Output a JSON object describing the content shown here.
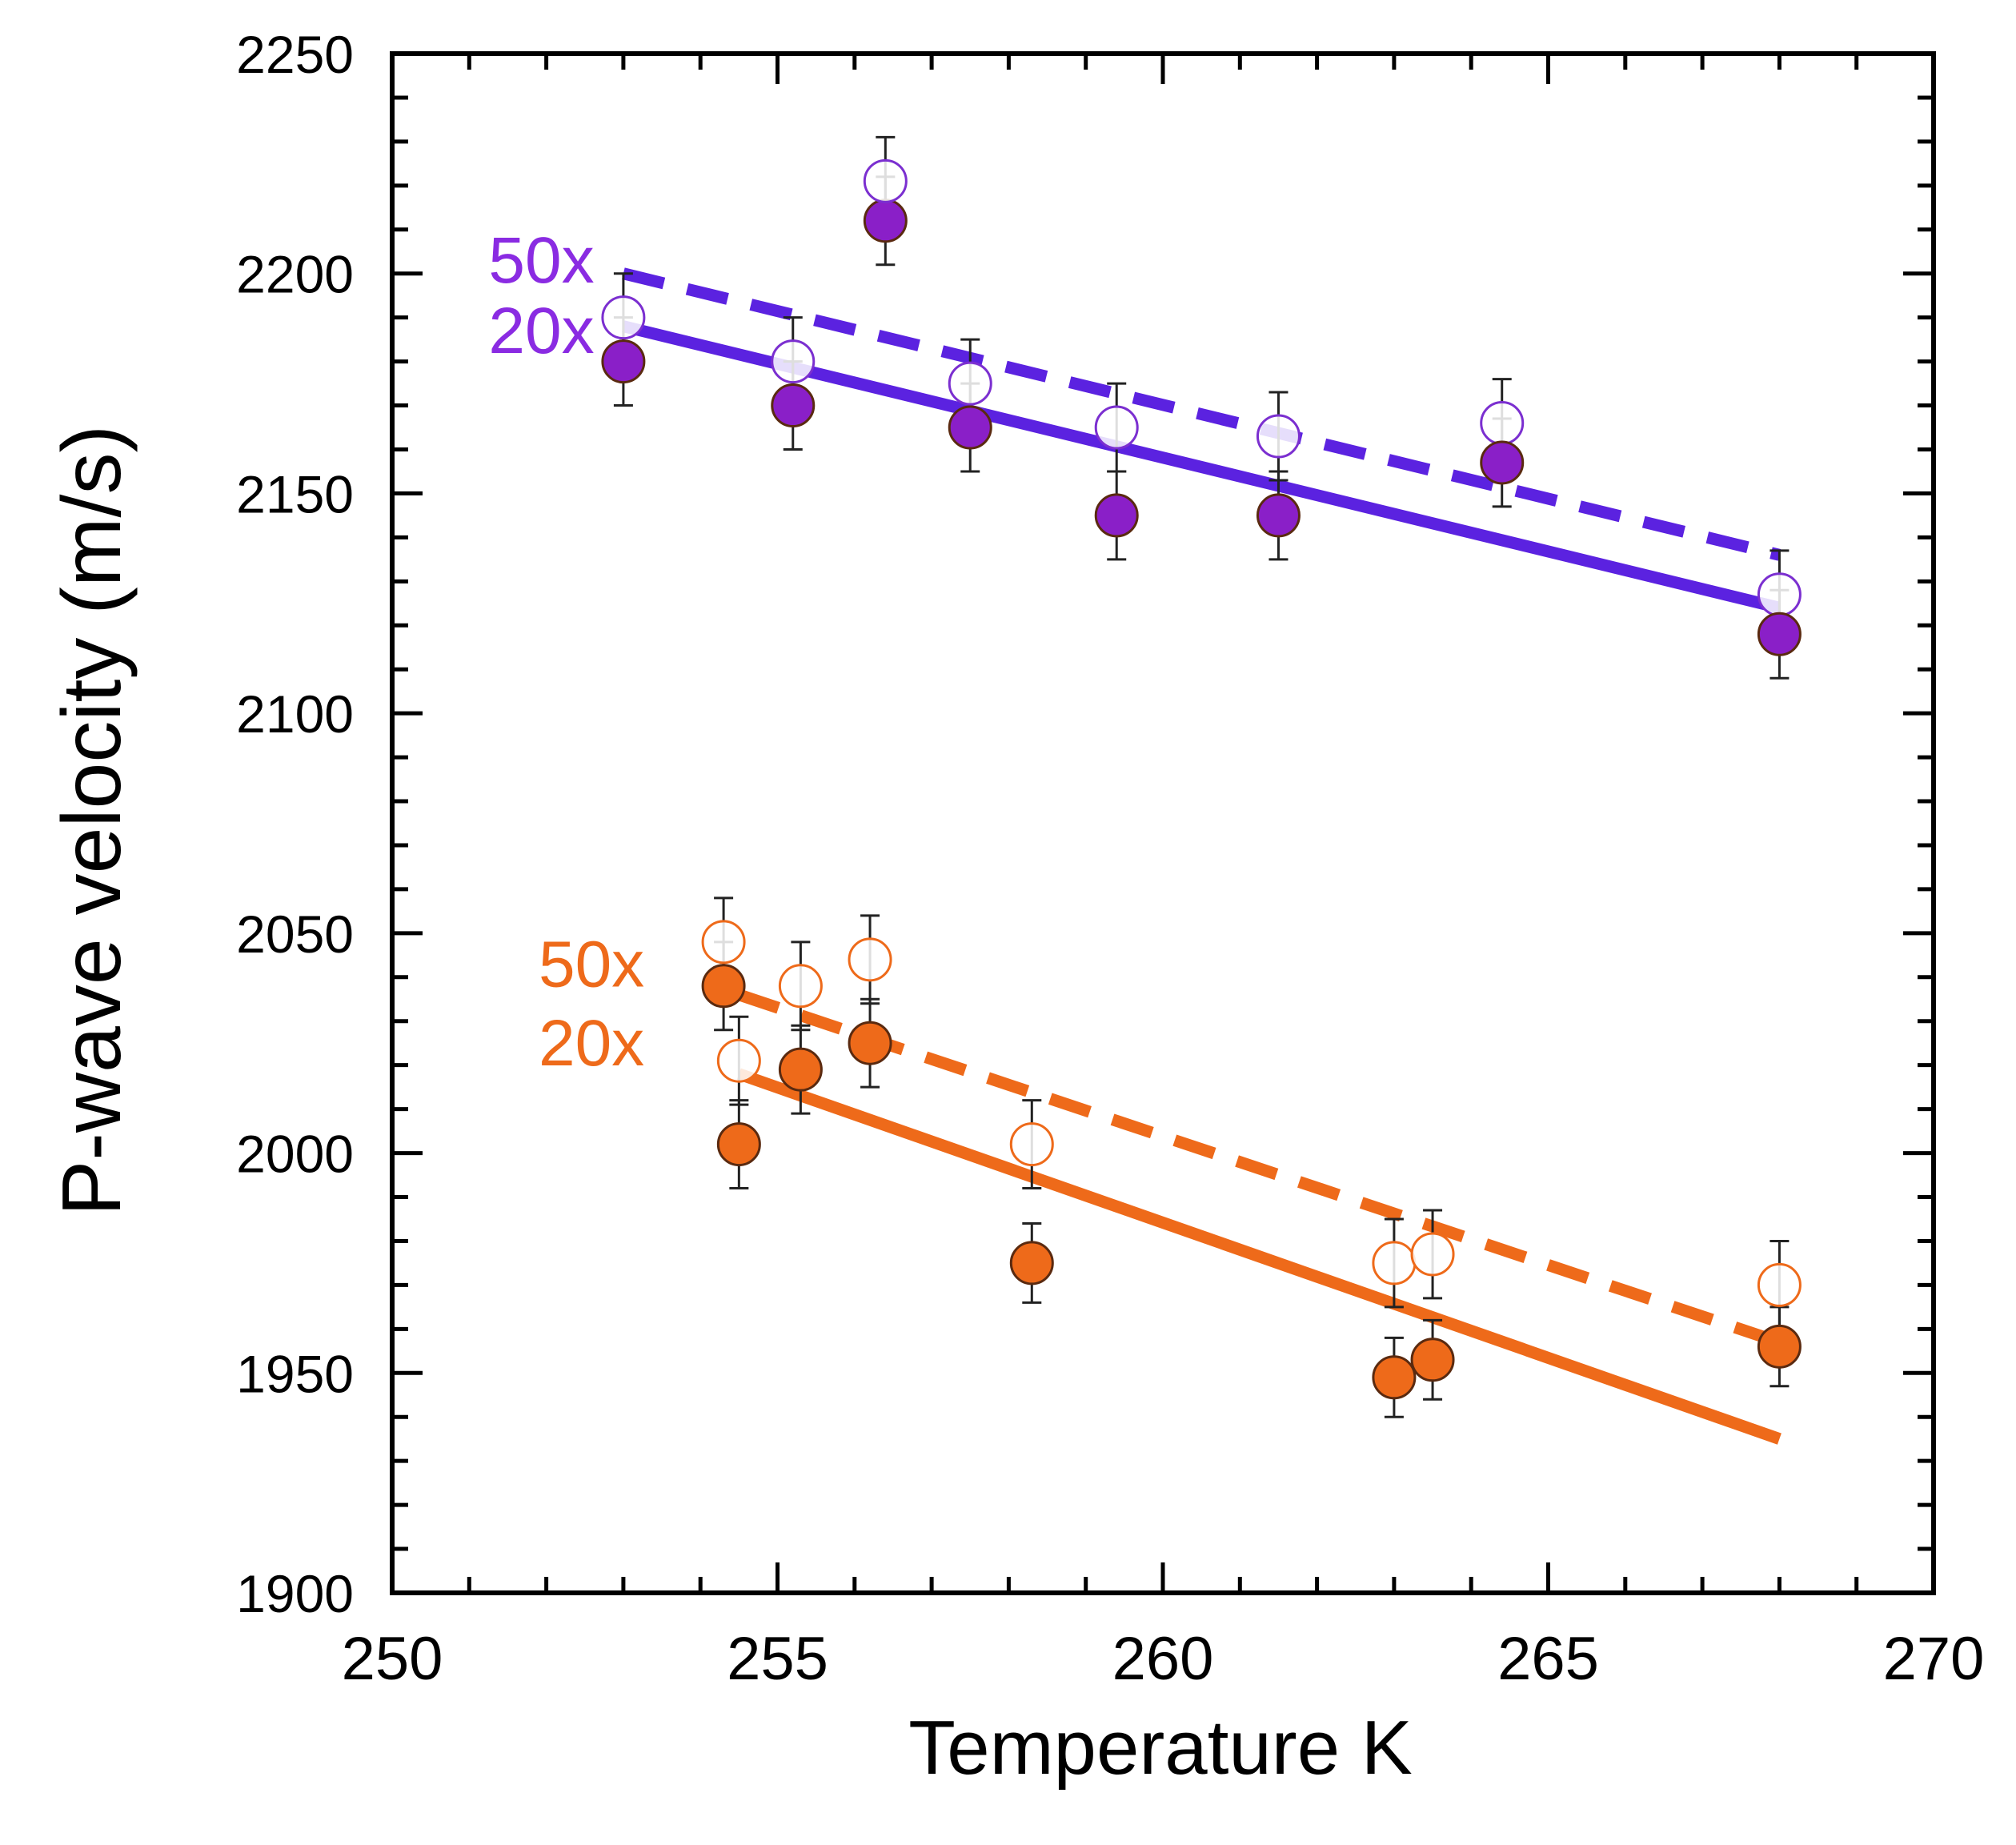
{
  "chart_data": {
    "type": "scatter",
    "title": "",
    "xlabel": "Temperature K",
    "ylabel": "P-wave velocity (m/s)",
    "xlim": [
      250,
      270
    ],
    "ylim": [
      1900,
      2250
    ],
    "xticks": [
      250,
      255,
      260,
      265,
      270
    ],
    "yticks": [
      1900,
      1950,
      2000,
      2050,
      2100,
      2150,
      2200,
      2250
    ],
    "x_minor_step": 1,
    "y_minor_step": 10,
    "grid": false,
    "series": [
      {
        "name": "purple 50x (open)",
        "color": "#7b2fd0",
        "marker": "open-circle",
        "points": [
          {
            "x": 253.0,
            "y": 2190,
            "err": 10
          },
          {
            "x": 255.2,
            "y": 2180,
            "err": 10
          },
          {
            "x": 257.5,
            "y": 2175,
            "err": 10
          },
          {
            "x": 259.4,
            "y": 2165,
            "err": 10
          },
          {
            "x": 261.5,
            "y": 2163,
            "err": 10
          },
          {
            "x": 264.4,
            "y": 2166,
            "err": 10
          },
          {
            "x": 268.0,
            "y": 2127,
            "err": 10
          }
        ]
      },
      {
        "name": "purple 20x (filled)",
        "color": "#8a1fc8",
        "marker": "filled-circle",
        "points": [
          {
            "x": 253.0,
            "y": 2180,
            "err": 10
          },
          {
            "x": 255.2,
            "y": 2170,
            "err": 10
          },
          {
            "x": 256.4,
            "y": 2212,
            "err": 10
          },
          {
            "x": 257.5,
            "y": 2165,
            "err": 10
          },
          {
            "x": 259.4,
            "y": 2145,
            "err": 10
          },
          {
            "x": 261.5,
            "y": 2145,
            "err": 10
          },
          {
            "x": 264.4,
            "y": 2157,
            "err": 10
          },
          {
            "x": 268.0,
            "y": 2118,
            "err": 10
          }
        ]
      },
      {
        "name": "purple 50x (open, extra)",
        "color": "#7b2fd0",
        "marker": "open-circle",
        "points": [
          {
            "x": 256.4,
            "y": 2221,
            "err": 10
          }
        ]
      },
      {
        "name": "orange 50x (open)",
        "color": "#ee6a1a",
        "marker": "open-circle",
        "points": [
          {
            "x": 254.3,
            "y": 2048,
            "err": 10
          },
          {
            "x": 255.3,
            "y": 2038,
            "err": 10
          },
          {
            "x": 256.2,
            "y": 2044,
            "err": 10
          },
          {
            "x": 254.5,
            "y": 2021,
            "err": 10
          },
          {
            "x": 258.3,
            "y": 2002,
            "err": 10
          },
          {
            "x": 263.0,
            "y": 1975,
            "err": 10
          },
          {
            "x": 263.5,
            "y": 1977,
            "err": 10
          },
          {
            "x": 268.0,
            "y": 1970,
            "err": 10
          }
        ]
      },
      {
        "name": "orange 20x (filled)",
        "color": "#ee6a1a",
        "marker": "filled-circle",
        "points": [
          {
            "x": 254.3,
            "y": 2038,
            "err": 10
          },
          {
            "x": 254.5,
            "y": 2002,
            "err": 10
          },
          {
            "x": 255.3,
            "y": 2019,
            "err": 10
          },
          {
            "x": 256.2,
            "y": 2025,
            "err": 10
          },
          {
            "x": 258.3,
            "y": 1975,
            "err": 9
          },
          {
            "x": 263.0,
            "y": 1949,
            "err": 9
          },
          {
            "x": 263.5,
            "y": 1953,
            "err": 9
          },
          {
            "x": 268.0,
            "y": 1956,
            "err": 9
          }
        ]
      }
    ],
    "fit_lines": [
      {
        "name": "purple 50x fit",
        "style": "dashed",
        "color": "#5b22e0",
        "x": [
          253.0,
          268.0
        ],
        "y": [
          2200,
          2136
        ]
      },
      {
        "name": "purple 20x fit",
        "style": "solid",
        "color": "#5b22e0",
        "x": [
          253.0,
          268.0
        ],
        "y": [
          2188,
          2124
        ]
      },
      {
        "name": "orange 50x fit",
        "style": "dashed",
        "color": "#ee6a1a",
        "x": [
          254.5,
          268.0
        ],
        "y": [
          2036,
          1957
        ]
      },
      {
        "name": "orange 20x fit",
        "style": "solid",
        "color": "#ee6a1a",
        "x": [
          254.5,
          268.0
        ],
        "y": [
          2018,
          1935
        ]
      }
    ],
    "annotations": [
      {
        "text": "50x",
        "color": "#8a2be2",
        "x": 251.25,
        "y": 2203
      },
      {
        "text": "20x",
        "color": "#8a2be2",
        "x": 251.25,
        "y": 2187
      },
      {
        "text": "50x",
        "color": "#ee6a1a",
        "x": 251.9,
        "y": 2043
      },
      {
        "text": "20x",
        "color": "#ee6a1a",
        "x": 251.9,
        "y": 2025
      }
    ]
  }
}
